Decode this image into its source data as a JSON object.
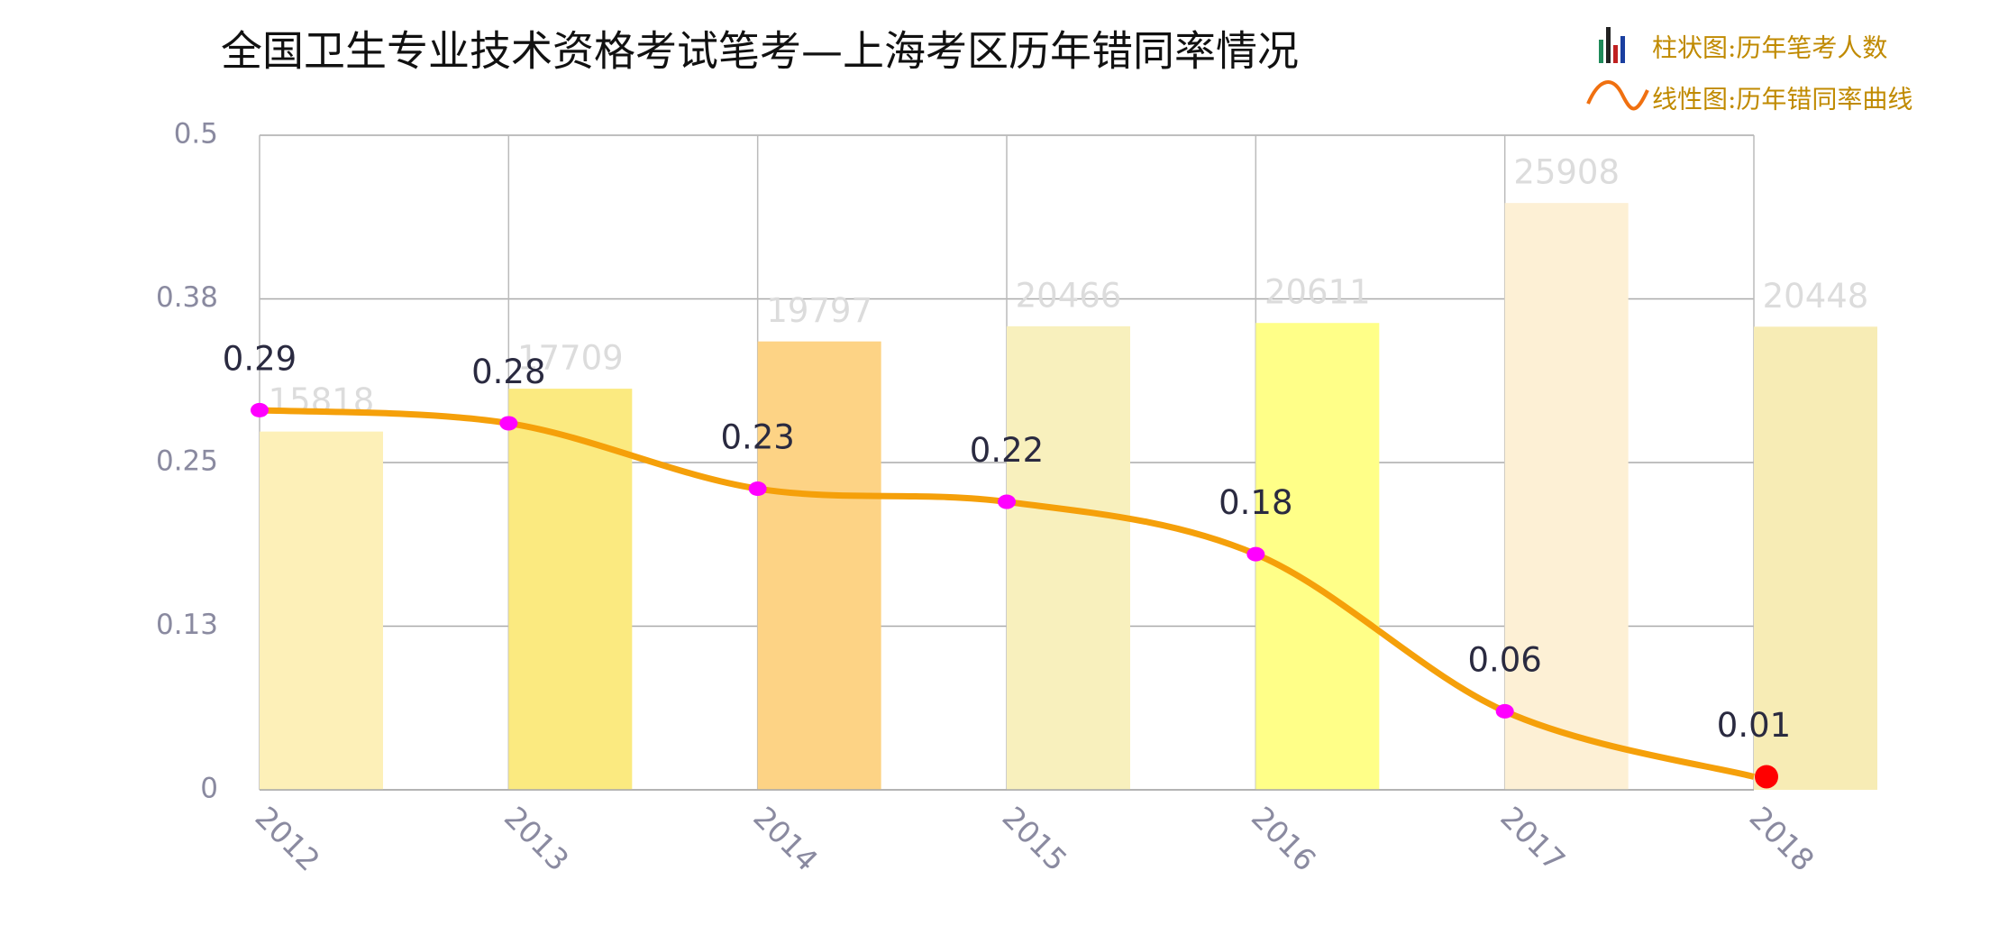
{
  "chart_data": {
    "type": "combo",
    "title": "全国卫生专业技术资格考试笔考—上海考区历年错同率情况",
    "categories": [
      "2012",
      "2013",
      "2014",
      "2015",
      "2016",
      "2017",
      "2018"
    ],
    "series": [
      {
        "name": "柱状图:历年笔考人数",
        "type": "bar",
        "axis": "y2",
        "colors": [
          "#fdf0b8",
          "#fbea80",
          "#fdd385",
          "#f8f0bd",
          "#ffff88",
          "#fdf0d5",
          "#f7ecb5"
        ],
        "values": [
          15818,
          17709,
          19797,
          20466,
          20611,
          25908,
          20448
        ]
      },
      {
        "name": "线性图:历年错同率曲线",
        "type": "line",
        "color": "#f5a00a",
        "marker_color": "#ff00ff",
        "highlight_color": "#ff0000",
        "values": [
          0.29,
          0.28,
          0.23,
          0.22,
          0.18,
          0.06,
          0.01
        ]
      }
    ],
    "ylim": [
      0,
      0.5
    ],
    "yticks": [
      0,
      {
        "value": 0.125,
        "label": "0.13"
      },
      0.25,
      {
        "value": 0.375,
        "label": "0.38"
      },
      0.5
    ],
    "y2lim": [
      0,
      28900
    ],
    "grid": true,
    "legend": "top-right"
  }
}
